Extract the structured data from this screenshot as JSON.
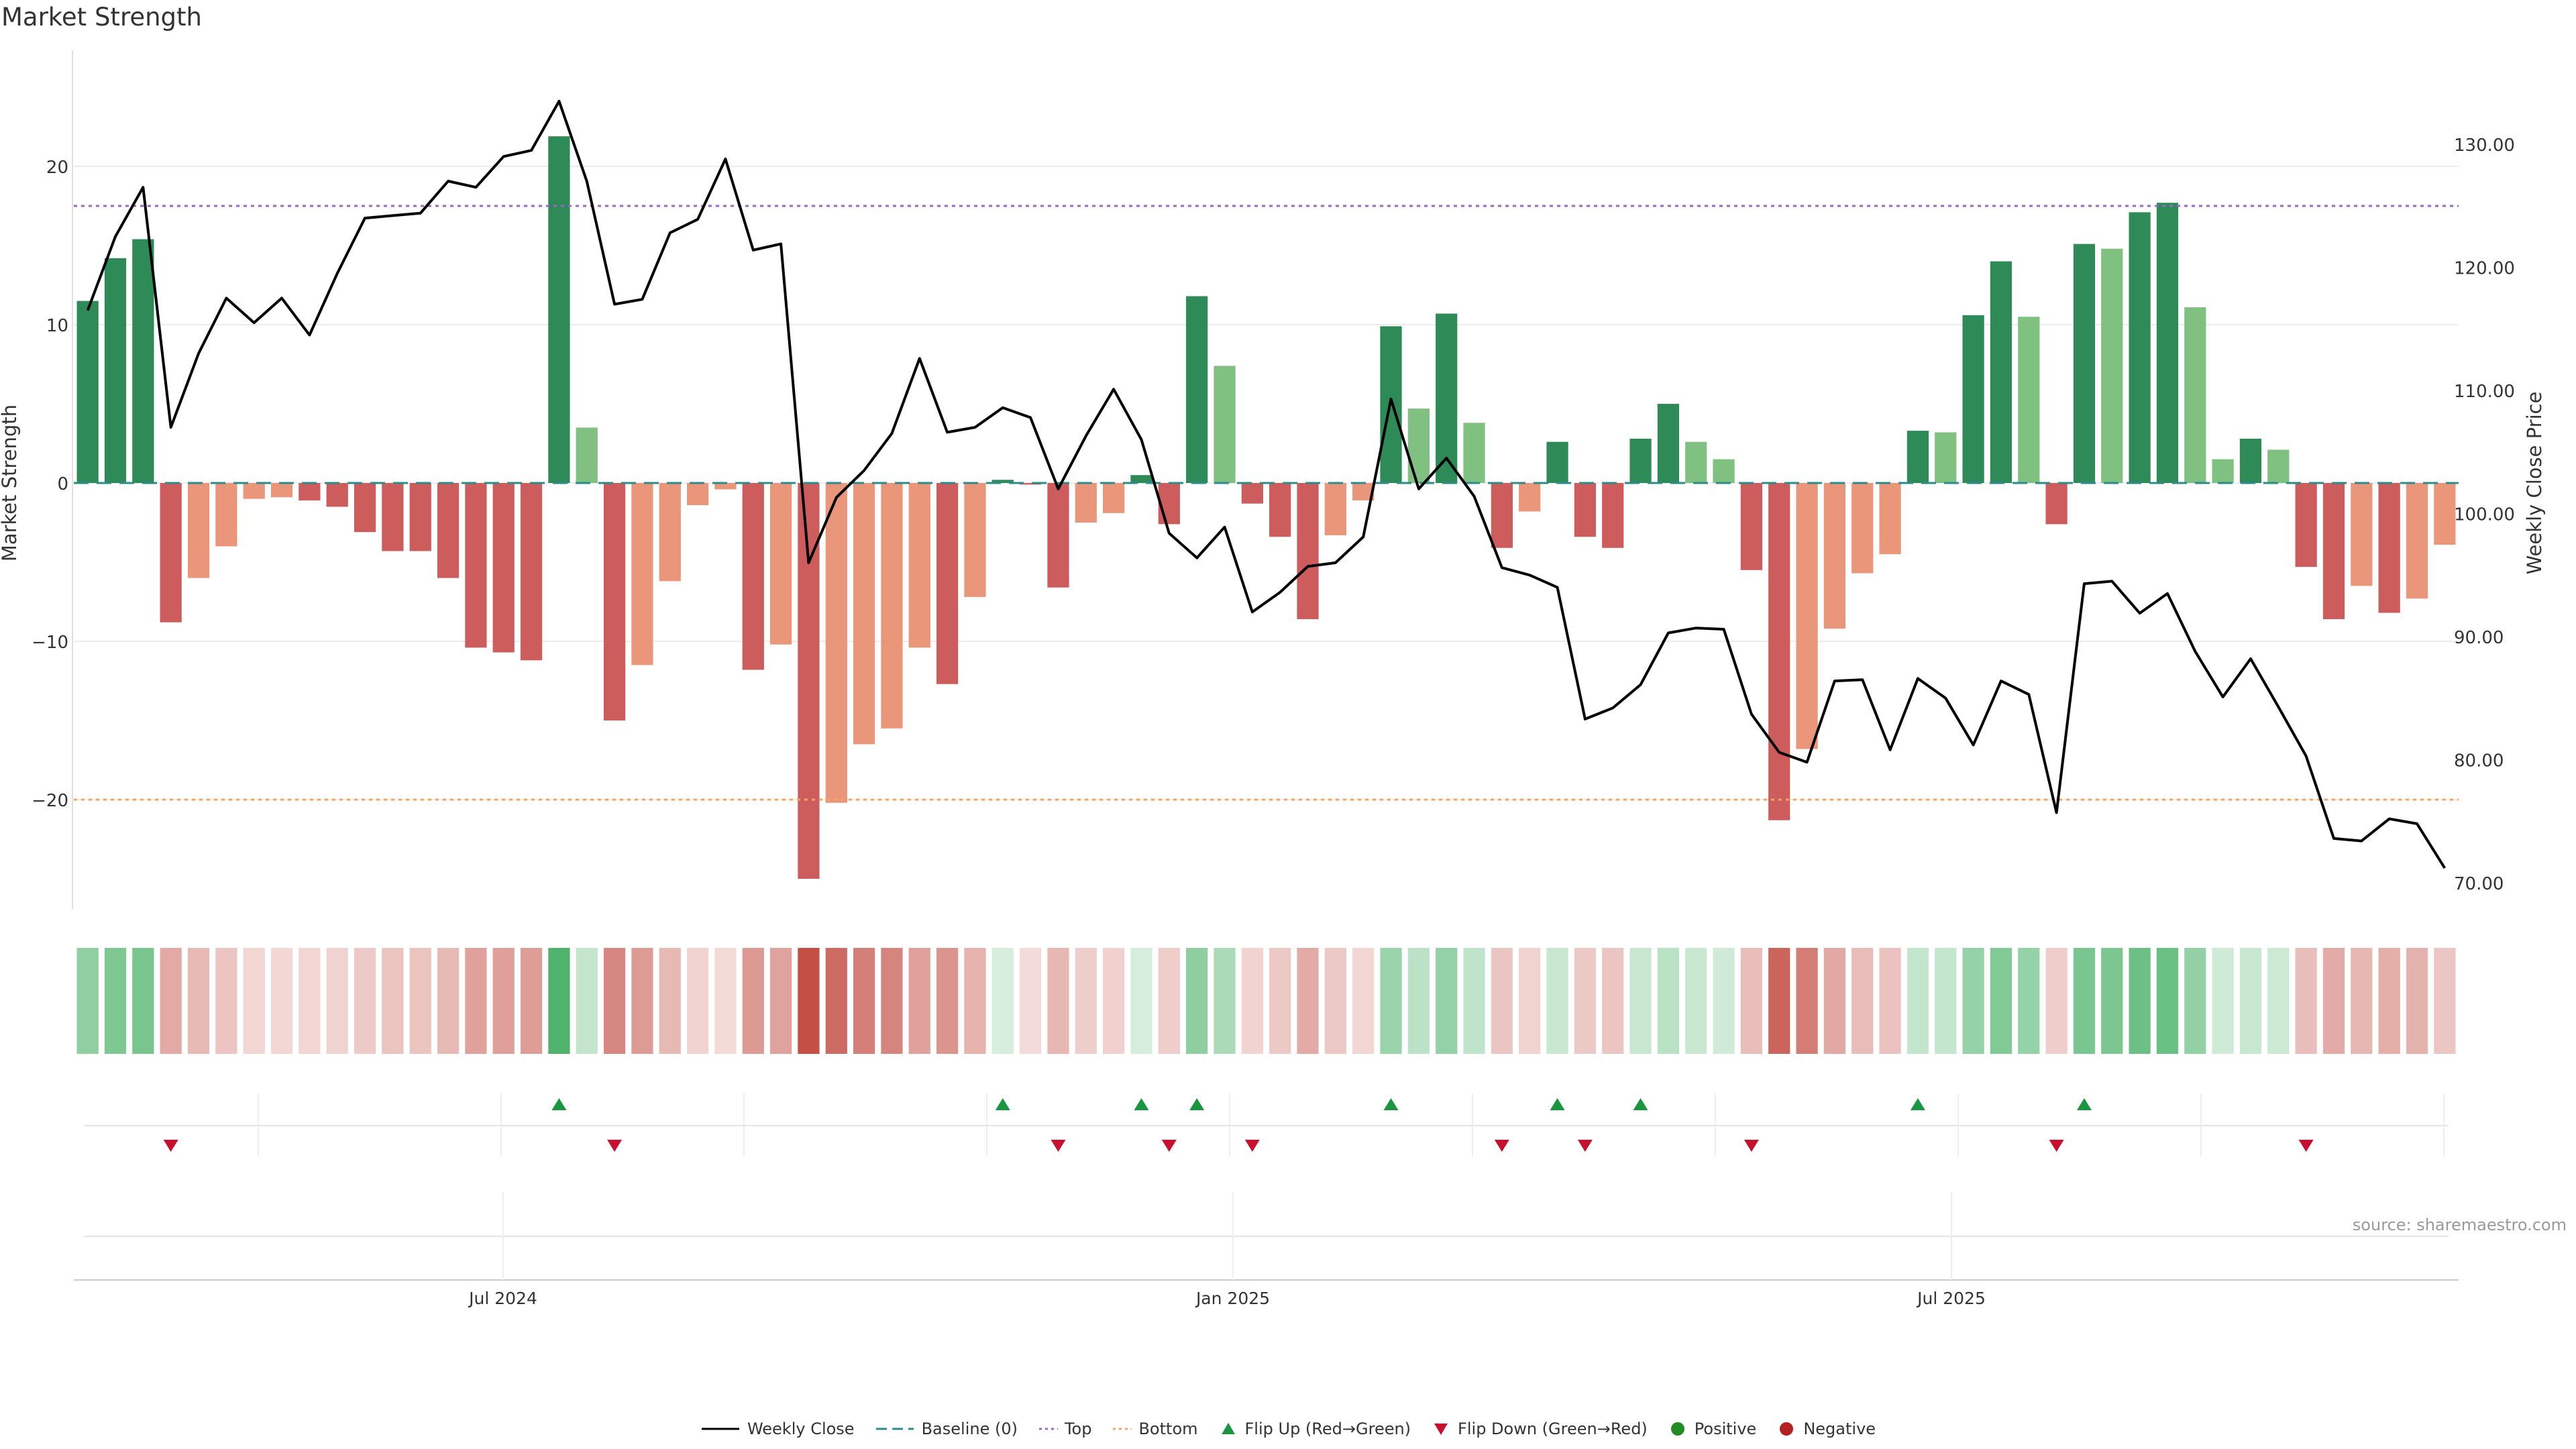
{
  "chart_data": {
    "type": "bar",
    "title": "Market Strength",
    "ylabel_left": "Market Strength",
    "ylabel_right": "Weekly Close Price",
    "source": "source: sharemaestro.com",
    "x_ticks": [
      "Jul 2024",
      "Jan 2025",
      "Jul 2025"
    ],
    "y_left_ticks": [
      "20",
      "10",
      "0",
      "−10",
      "−20"
    ],
    "y_right_ticks": [
      "130.00",
      "120.00",
      "110.00",
      "100.00",
      "90.00",
      "80.00",
      "70.00"
    ],
    "ylim_left": [
      -27,
      27
    ],
    "ylim_right": [
      67.5,
      134.5
    ],
    "reference_lines": {
      "baseline": 0,
      "top": 17.5,
      "bottom": -20
    },
    "bars": [
      11.5,
      14.2,
      15.4,
      -8.8,
      -6.0,
      -4.0,
      -1.0,
      -0.9,
      -1.1,
      -1.5,
      -3.1,
      -4.3,
      -4.3,
      -6.0,
      -10.4,
      -10.7,
      -11.2,
      21.9,
      3.5,
      -15.0,
      -11.5,
      -6.2,
      -1.4,
      -0.4,
      -11.8,
      -10.2,
      -25.0,
      -20.2,
      -16.5,
      -15.5,
      -10.4,
      -12.7,
      -7.2,
      0.2,
      -0.1,
      -6.6,
      -2.5,
      -1.9,
      0.5,
      -2.6,
      11.8,
      7.4,
      -1.3,
      -3.4,
      -8.6,
      -3.3,
      -1.1,
      9.9,
      4.7,
      10.7,
      3.8,
      -4.1,
      -1.8,
      2.6,
      -3.4,
      -4.1,
      2.8,
      5.0,
      2.6,
      1.5,
      -5.5,
      -21.3,
      -16.8,
      -9.2,
      -5.7,
      -4.5,
      3.3,
      3.2,
      10.6,
      14.0,
      10.5,
      -2.6,
      15.1,
      14.8,
      17.1,
      17.7,
      11.1,
      1.5,
      2.8,
      2.1,
      -5.3,
      -8.6,
      -6.5,
      -8.2,
      -7.3,
      -3.9
    ],
    "close": [
      116.5,
      122.5,
      126.5,
      107.0,
      113.0,
      117.5,
      115.5,
      117.5,
      114.5,
      119.5,
      124.0,
      124.2,
      124.4,
      127.0,
      126.5,
      129.0,
      129.5,
      133.5,
      127.0,
      117.0,
      117.4,
      122.8,
      123.9,
      128.8,
      121.4,
      121.9,
      96.0,
      101.3,
      103.5,
      106.5,
      112.6,
      106.6,
      107.0,
      108.6,
      107.8,
      102.0,
      106.3,
      110.1,
      106.0,
      98.4,
      96.4,
      98.9,
      92.0,
      93.6,
      95.7,
      96.0,
      98.1,
      109.3,
      102.0,
      104.5,
      101.4,
      95.6,
      95.0,
      94.0,
      83.3,
      84.2,
      86.1,
      90.3,
      90.7,
      90.6,
      83.7,
      80.6,
      79.8,
      86.4,
      86.5,
      80.8,
      86.6,
      85.0,
      81.2,
      86.4,
      85.3,
      75.7,
      94.3,
      94.5,
      91.9,
      93.5,
      88.8,
      85.1,
      88.2,
      84.3,
      80.3,
      73.6,
      73.4,
      75.2,
      74.8,
      71.2
    ],
    "flip_up_weeks": [
      17,
      33,
      38,
      40,
      47,
      53,
      56,
      66,
      72
    ],
    "flip_down_weeks": [
      3,
      19,
      35,
      39,
      42,
      51,
      54,
      60,
      71,
      80
    ],
    "colors": {
      "strong_positive": "#2e8b57",
      "weak_positive": "#80c080",
      "strong_negative": "#cd5c5c",
      "weak_negative": "#e9967a",
      "close_line": "#000000",
      "baseline": "#2e8b8b",
      "top": "#9966cc",
      "bottom": "#f4a460",
      "flip_up": "#1a9641",
      "flip_down": "#c8102e"
    },
    "legend": [
      {
        "label": "Weekly Close",
        "symbol": "line"
      },
      {
        "label": "Baseline (0)",
        "symbol": "dashed"
      },
      {
        "label": "Top",
        "symbol": "dotted-purple"
      },
      {
        "label": "Bottom",
        "symbol": "dotted-orange"
      },
      {
        "label": "Flip Up (Red→Green)",
        "symbol": "triangle-up"
      },
      {
        "label": "Flip Down (Green→Red)",
        "symbol": "triangle-down"
      },
      {
        "label": "Positive",
        "symbol": "dot-green"
      },
      {
        "label": "Negative",
        "symbol": "dot-red"
      }
    ]
  }
}
